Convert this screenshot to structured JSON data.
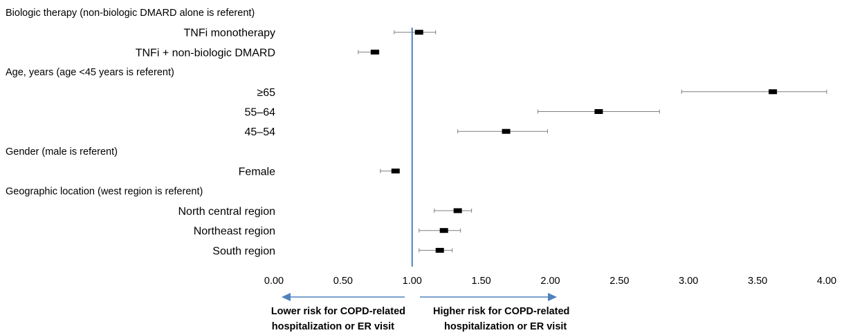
{
  "chart_data": {
    "type": "forest",
    "xlim": [
      0,
      4
    ],
    "reference_line": 1.0,
    "x_ticks": [
      "0.00",
      "0.50",
      "1.00",
      "1.50",
      "2.00",
      "2.50",
      "3.00",
      "3.50",
      "4.00"
    ],
    "rows": [
      {
        "kind": "group",
        "label": "Biologic therapy (non-biologic DMARD alone is referent)"
      },
      {
        "kind": "item",
        "label": "TNFi monotherapy",
        "estimate": 1.05,
        "lower": 0.87,
        "upper": 1.17
      },
      {
        "kind": "item",
        "label": "TNFi + non-biologic DMARD",
        "estimate": 0.73,
        "lower": 0.61,
        "upper": 0.76
      },
      {
        "kind": "group",
        "label": "Age, years (age <45 years is referent)"
      },
      {
        "kind": "item",
        "label": "≥65",
        "estimate": 3.61,
        "lower": 2.95,
        "upper": 4.0
      },
      {
        "kind": "item",
        "label": "55–64",
        "estimate": 2.35,
        "lower": 1.91,
        "upper": 2.79
      },
      {
        "kind": "item",
        "label": "45–54",
        "estimate": 1.68,
        "lower": 1.33,
        "upper": 1.98
      },
      {
        "kind": "group",
        "label": "Gender (male is referent)"
      },
      {
        "kind": "item",
        "label": "Female",
        "estimate": 0.88,
        "lower": 0.77,
        "upper": 0.9
      },
      {
        "kind": "group",
        "label": "Geographic location (west region is referent)"
      },
      {
        "kind": "item",
        "label": "North central region",
        "estimate": 1.33,
        "lower": 1.16,
        "upper": 1.43
      },
      {
        "kind": "item",
        "label": "Northeast region",
        "estimate": 1.23,
        "lower": 1.05,
        "upper": 1.35
      },
      {
        "kind": "item",
        "label": "South region",
        "estimate": 1.2,
        "lower": 1.05,
        "upper": 1.29
      }
    ],
    "left_caption": [
      "Lower risk for COPD-related",
      "hospitalization or ER visit"
    ],
    "right_caption": [
      "Higher risk for COPD-related",
      "hospitalization or ER visit"
    ],
    "colors": {
      "reference_line": "#4f81bd",
      "arrow": "#4f81bd",
      "marker": "#000000",
      "ci": "#7f7f7f"
    }
  }
}
